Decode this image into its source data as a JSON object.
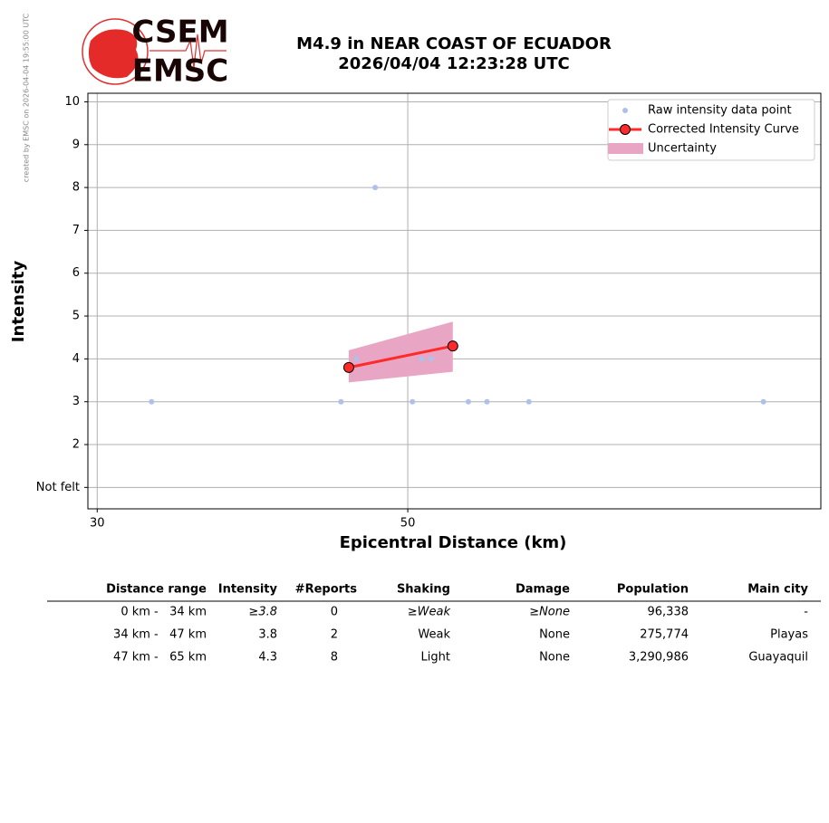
{
  "watermark": "created by EMSC on 2026-04-04 19:55:00 UTC",
  "logo": {
    "top": "CSEM",
    "bottom": "EMSC"
  },
  "chart_data": {
    "type": "scatter",
    "title": "M4.9 in NEAR COAST OF ECUADOR",
    "subtitle": "2026/04/04 12:23:28 UTC",
    "x_label": "Epicentral Distance (km)",
    "y_label": "Intensity",
    "xlim": [
      29.4,
      76.6
    ],
    "ylim": [
      0.5,
      10.2
    ],
    "xticks": [
      30,
      50
    ],
    "yticks": [
      {
        "value": 1,
        "label": "Not felt"
      },
      2,
      3,
      4,
      5,
      6,
      7,
      8,
      9,
      10
    ],
    "grid": true,
    "legend": "upper right",
    "series": [
      {
        "name": "Raw intensity data point",
        "color": "#aec0ec",
        "x": [
          33.5,
          45.7,
          46.7,
          47.9,
          50.3,
          50.9,
          51.5,
          53.9,
          55.1,
          57.8,
          72.9
        ],
        "values": [
          3,
          3,
          4,
          8,
          3,
          4,
          4,
          3,
          3,
          3,
          3
        ]
      },
      {
        "name": "Corrected Intensity Curve",
        "color": "#ff2a2a",
        "x": [
          46.2,
          52.9
        ],
        "values": [
          3.8,
          4.3
        ]
      }
    ],
    "uncertainty": {
      "name": "Uncertainty",
      "color": "#e8a6c4",
      "x": [
        46.2,
        52.9
      ],
      "lower": [
        3.45,
        3.7
      ],
      "upper": [
        4.2,
        4.87
      ]
    }
  },
  "table": {
    "header": [
      "Distance range",
      "Intensity",
      "#Reports",
      "Shaking",
      "Damage",
      "Population",
      "Main city"
    ],
    "rows": [
      [
        "0 km -   34 km",
        "≥3.8",
        "0",
        "≥Weak",
        "≥None",
        "96,338",
        "-"
      ],
      [
        "34 km -   47 km",
        "3.8",
        "2",
        "Weak",
        "None",
        "275,774",
        "Playas"
      ],
      [
        "47 km -   65 km",
        "4.3",
        "8",
        "Light",
        "None",
        "3,290,986",
        "Guayaquil"
      ]
    ]
  }
}
